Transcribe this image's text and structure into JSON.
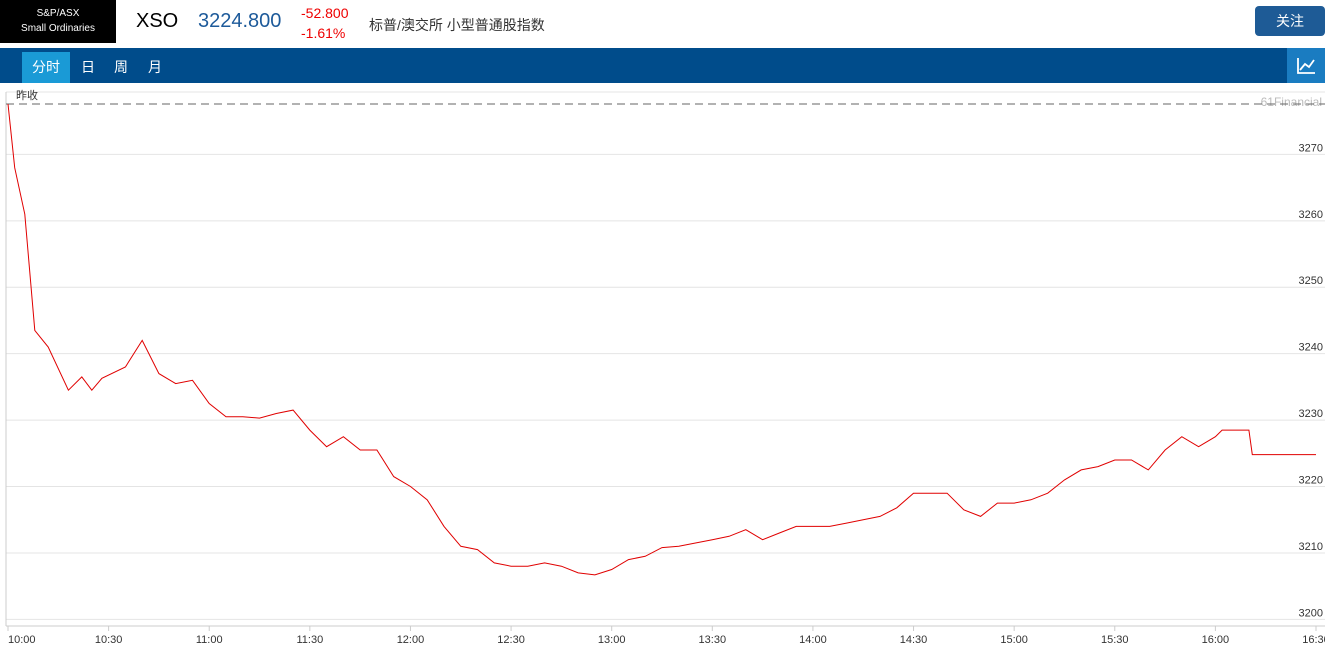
{
  "header": {
    "logo": [
      "S&P/ASX",
      "Small Ordinaries"
    ],
    "symbol": "XSO",
    "price": "3224.800",
    "change": "-52.800",
    "change_percent": "-1.61%",
    "name": "标普/澳交所 小型普通股指数",
    "button": "关注"
  },
  "tabs": [
    "分时",
    "日",
    "周",
    "月"
  ],
  "chart_data": {
    "type": "line",
    "color": "#e00000",
    "watermark": "61Financial",
    "reference_label": "昨收",
    "reference": 3277.6,
    "x": [
      "10:00",
      "10:02",
      "10:05",
      "10:08",
      "10:12",
      "10:18",
      "10:22",
      "10:25",
      "10:28",
      "10:35",
      "10:40",
      "10:45",
      "10:50",
      "10:55",
      "11:00",
      "11:05",
      "11:10",
      "11:15",
      "11:20",
      "11:25",
      "11:30",
      "11:35",
      "11:40",
      "11:45",
      "11:50",
      "11:55",
      "12:00",
      "12:05",
      "12:10",
      "12:15",
      "12:20",
      "12:25",
      "12:30",
      "12:35",
      "12:40",
      "12:45",
      "12:50",
      "12:55",
      "13:00",
      "13:05",
      "13:10",
      "13:15",
      "13:20",
      "13:25",
      "13:30",
      "13:35",
      "13:40",
      "13:45",
      "13:50",
      "13:55",
      "14:00",
      "14:05",
      "14:10",
      "14:15",
      "14:20",
      "14:25",
      "14:30",
      "14:35",
      "14:40",
      "14:45",
      "14:50",
      "14:55",
      "15:00",
      "15:05",
      "15:10",
      "15:15",
      "15:20",
      "15:25",
      "15:30",
      "15:35",
      "15:40",
      "15:45",
      "15:50",
      "15:55",
      "16:00",
      "16:02",
      "16:10",
      "16:11",
      "16:30"
    ],
    "values": [
      3277.6,
      3268,
      3261,
      3243.5,
      3241,
      3234.5,
      3236.5,
      3234.5,
      3236.3,
      3238,
      3242,
      3237,
      3235.5,
      3236,
      3232.5,
      3230.5,
      3230.5,
      3230.3,
      3231,
      3231.5,
      3228.5,
      3226,
      3227.5,
      3225.5,
      3225.5,
      3221.5,
      3220,
      3218,
      3214,
      3211,
      3210.5,
      3208.5,
      3208,
      3208,
      3208.5,
      3208,
      3207,
      3206.7,
      3207.5,
      3209,
      3209.5,
      3210.8,
      3211,
      3211.5,
      3212,
      3212.5,
      3213.5,
      3212,
      3213,
      3214,
      3214,
      3214,
      3214.5,
      3215,
      3215.5,
      3216.8,
      3219,
      3219,
      3219,
      3216.5,
      3215.5,
      3217.5,
      3217.5,
      3218,
      3219,
      3221,
      3222.5,
      3223,
      3224,
      3224,
      3222.5,
      3225.5,
      3227.5,
      3226,
      3227.5,
      3228.5,
      3228.5,
      3224.8,
      3224.8
    ],
    "xticks": [
      "10:00",
      "10:30",
      "11:00",
      "11:30",
      "12:00",
      "12:30",
      "13:00",
      "13:30",
      "14:00",
      "14:30",
      "15:00",
      "15:30",
      "16:00",
      "16:30"
    ],
    "ylim": [
      3199,
      3279.4
    ],
    "yticks": [
      3200,
      3210,
      3220,
      3230,
      3240,
      3250,
      3260,
      3270
    ],
    "grid": true
  }
}
